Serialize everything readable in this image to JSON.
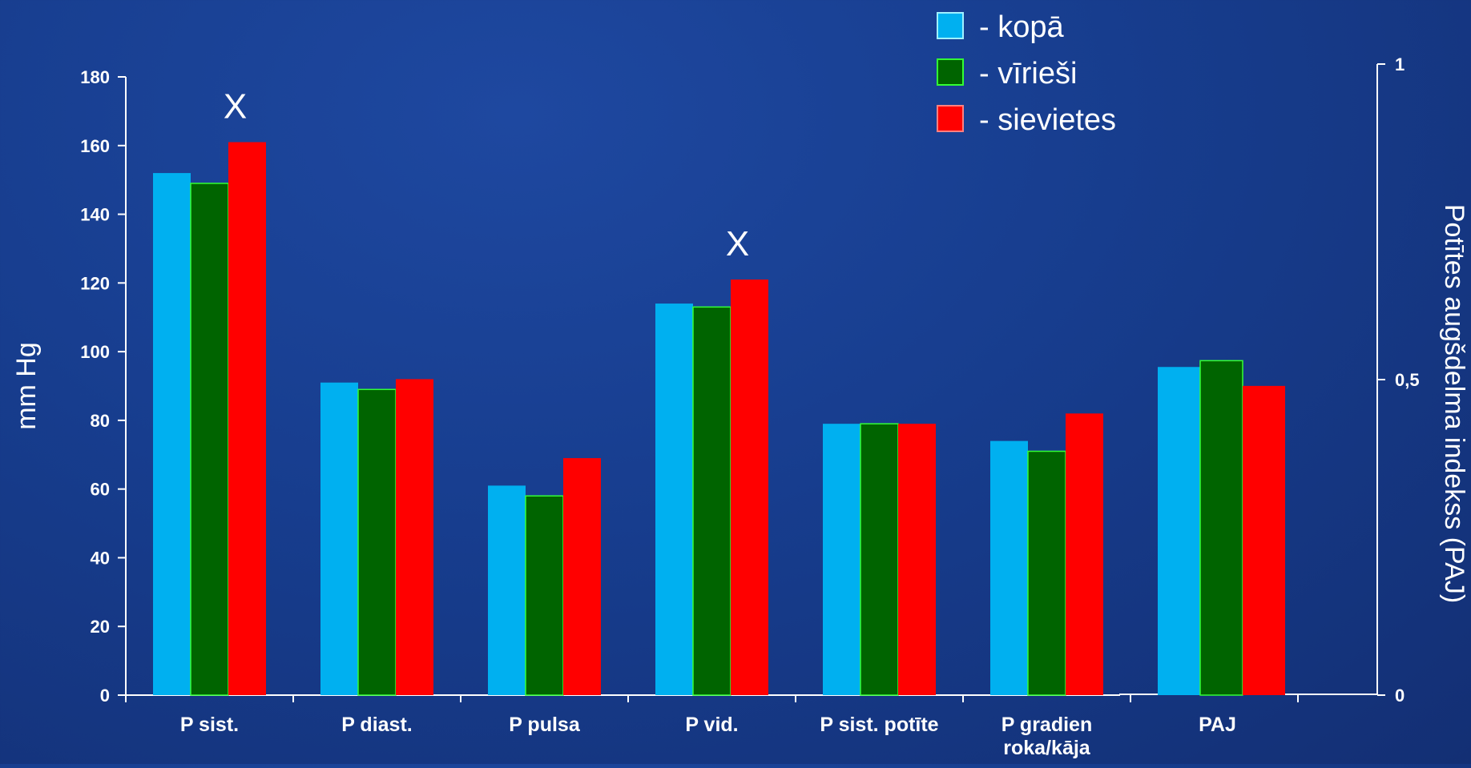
{
  "chart_data": {
    "type": "bar",
    "title": "",
    "categories": [
      "P sist.",
      "P diast.",
      "P pulsa",
      "P vid.",
      "P sist. potīte",
      [
        "P gradien",
        "roka/kāja"
      ],
      "PAJ"
    ],
    "series": [
      {
        "name": "- kopā",
        "color": "#00b0f0",
        "values": [
          152,
          91,
          61,
          114,
          79,
          74,
          0.52
        ]
      },
      {
        "name": "- vīrieši",
        "color": "#006400",
        "values": [
          149,
          89,
          58,
          113,
          79,
          71,
          0.53
        ]
      },
      {
        "name": "- sievietes",
        "color": "#ff0000",
        "values": [
          161,
          92,
          69,
          121,
          79,
          82,
          0.49
        ]
      }
    ],
    "secondary_axis_categories": [
      "PAJ"
    ],
    "left_axis": {
      "label": "mm Hg",
      "ylim": [
        0,
        180
      ],
      "ticks": [
        0,
        20,
        40,
        60,
        80,
        100,
        120,
        140,
        160,
        180
      ]
    },
    "right_axis": {
      "label": "Potītes augšdelma indekss (PAJ)",
      "ylim": [
        0,
        1
      ],
      "ticks": [
        "0",
        "0,5",
        "1"
      ]
    },
    "annotations": [
      {
        "text": "X",
        "category": "P sist."
      },
      {
        "text": "X",
        "category": "P vid."
      }
    ],
    "legend_position": "top-right",
    "grid": false
  }
}
